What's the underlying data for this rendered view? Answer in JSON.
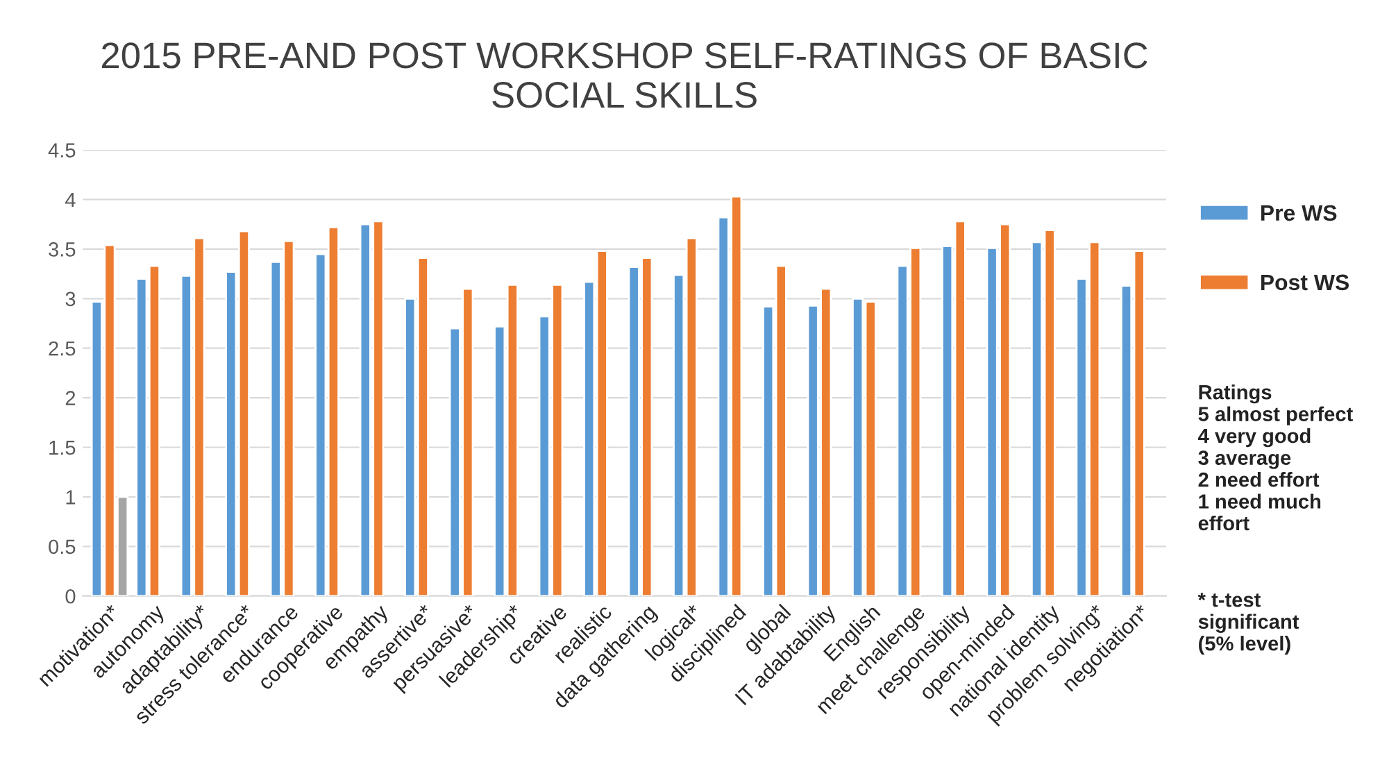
{
  "chart_data": {
    "type": "bar",
    "title": "2015 PRE-AND POST WORKSHOP SELF-RATINGS OF BASIC\nSOCIAL SKILLS",
    "categories": [
      "motivation*",
      "autonomy",
      "adaptability*",
      "stress tolerance*",
      "endurance",
      "cooperative",
      "empathy",
      "assertive*",
      "persuasive*",
      "leadership*",
      "creative",
      "realistic",
      "data gathering",
      "logical*",
      "disciplined",
      "global",
      "IT adabtability",
      "English",
      "meet challenge",
      "responsibility",
      "open-minded",
      "national identity",
      "problem solving*",
      "negotiation*"
    ],
    "series": [
      {
        "name": "Pre WS",
        "color": "#5b9bd5",
        "values": [
          2.97,
          3.2,
          3.23,
          3.27,
          3.37,
          3.45,
          3.75,
          3.0,
          2.7,
          2.72,
          2.82,
          3.17,
          3.32,
          3.24,
          3.82,
          2.92,
          2.93,
          3.0,
          3.33,
          3.53,
          3.51,
          3.57,
          3.2,
          3.13
        ]
      },
      {
        "name": "Post WS",
        "color": "#ed7d31",
        "values": [
          3.54,
          3.33,
          3.61,
          3.68,
          3.58,
          3.72,
          3.78,
          3.41,
          3.1,
          3.14,
          3.14,
          3.48,
          3.41,
          3.61,
          4.03,
          3.33,
          3.1,
          2.97,
          3.51,
          3.78,
          3.75,
          3.69,
          3.57,
          3.48
        ]
      },
      {
        "color": "#a5a5a5",
        "values": [
          1,
          null,
          null,
          null,
          null,
          null,
          null,
          null,
          null,
          null,
          null,
          null,
          null,
          null,
          null,
          null,
          null,
          null,
          null,
          null,
          null,
          null,
          null,
          null
        ]
      }
    ],
    "ylim": [
      0,
      4.5
    ],
    "yticks": [
      0,
      0.5,
      1,
      1.5,
      2,
      2.5,
      3,
      3.5,
      4,
      4.5
    ],
    "grid": "y",
    "legend": "right",
    "annotations": [
      "Ratings\n5 almost perfect\n4 very good\n3 average\n2 need effort\n1 need much\neffort",
      "* t-test\nsignificant\n(5% level)"
    ]
  }
}
